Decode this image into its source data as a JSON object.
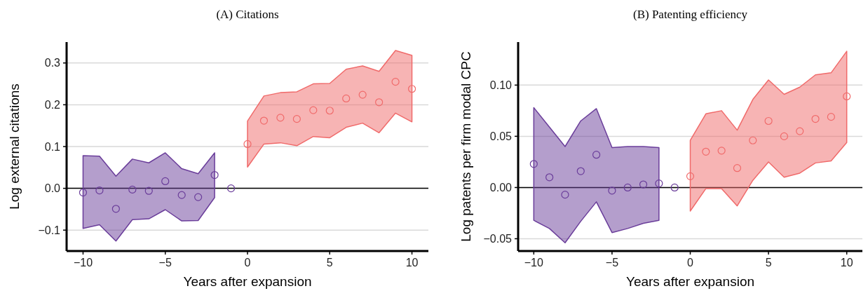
{
  "chart_data": [
    {
      "type": "scatter",
      "title": "(A) Citations",
      "xlabel": "Years after expansion",
      "ylabel": "Log external citations",
      "xlim": [
        -11,
        11
      ],
      "xticks": [
        -10,
        -5,
        0,
        5,
        10
      ],
      "ylim": [
        -0.15,
        0.35
      ],
      "yticks": [
        -0.1,
        {
          "value": 0,
          "label": "0.0"
        },
        0.1,
        0.2,
        0.3
      ],
      "grid": "y",
      "marker": "circle",
      "ref_lines": [
        {
          "axis": "y",
          "value": 0,
          "color": "#000000"
        }
      ],
      "series": [
        {
          "color": "#6a3d9a",
          "x": [
            -10,
            -9,
            -8,
            -7,
            -6,
            -5,
            -4,
            -3,
            -2,
            -1
          ],
          "values": [
            -0.01,
            -0.005,
            -0.049,
            -0.003,
            -0.006,
            0.017,
            -0.016,
            -0.021,
            0.032,
            0.0
          ],
          "upper": [
            0.078,
            0.077,
            0.029,
            0.07,
            0.061,
            0.085,
            0.047,
            0.035,
            0.085,
            null
          ],
          "lower": [
            -0.096,
            -0.087,
            -0.126,
            -0.075,
            -0.073,
            -0.051,
            -0.078,
            -0.077,
            -0.022,
            null
          ]
        },
        {
          "color": "#f06a6a",
          "x": [
            0,
            1,
            2,
            3,
            4,
            5,
            6,
            7,
            8,
            9,
            10
          ],
          "values": [
            0.106,
            0.162,
            0.169,
            0.166,
            0.187,
            0.186,
            0.215,
            0.224,
            0.206,
            0.255,
            0.238
          ],
          "upper": [
            0.161,
            0.221,
            0.229,
            0.231,
            0.25,
            0.251,
            0.285,
            0.293,
            0.28,
            0.33,
            0.318
          ],
          "lower": [
            0.051,
            0.106,
            0.109,
            0.102,
            0.124,
            0.121,
            0.146,
            0.156,
            0.133,
            0.18,
            0.159
          ]
        }
      ]
    },
    {
      "type": "scatter",
      "title": "(B) Patenting efficiency",
      "xlabel": "Years after expansion",
      "ylabel": "Log patents per firm modal CPC",
      "xlim": [
        -11,
        11
      ],
      "xticks": [
        -10,
        -5,
        0,
        5,
        10
      ],
      "ylim": [
        -0.062,
        0.142
      ],
      "yticks": [
        {
          "value": -0.05,
          "label": "−0.05"
        },
        {
          "value": 0,
          "label": "0.00"
        },
        0.05,
        {
          "value": 0.1,
          "label": "0.10"
        }
      ],
      "grid": "y",
      "marker": "circle",
      "ref_lines": [
        {
          "axis": "y",
          "value": 0,
          "color": "#000000"
        }
      ],
      "series": [
        {
          "color": "#6a3d9a",
          "x": [
            -10,
            -9,
            -8,
            -7,
            -6,
            -5,
            -4,
            -3,
            -2,
            -1
          ],
          "values": [
            0.023,
            0.01,
            -0.007,
            0.016,
            0.032,
            -0.003,
            0.0,
            0.003,
            0.004,
            0.0
          ],
          "upper": [
            0.078,
            0.059,
            0.04,
            0.065,
            0.077,
            0.039,
            0.04,
            0.04,
            0.039,
            null
          ],
          "lower": [
            -0.032,
            -0.04,
            -0.054,
            -0.033,
            -0.014,
            -0.044,
            -0.04,
            -0.035,
            -0.032,
            null
          ]
        },
        {
          "color": "#f06a6a",
          "x": [
            0,
            1,
            2,
            3,
            4,
            5,
            6,
            7,
            8,
            9,
            10
          ],
          "values": [
            0.011,
            0.035,
            0.036,
            0.019,
            0.046,
            0.065,
            0.05,
            0.055,
            0.067,
            0.069,
            0.089
          ],
          "upper": [
            0.046,
            0.072,
            0.075,
            0.056,
            0.086,
            0.105,
            0.091,
            0.098,
            0.11,
            0.112,
            0.133
          ],
          "lower": [
            -0.023,
            -0.001,
            -0.001,
            -0.018,
            0.007,
            0.025,
            0.01,
            0.014,
            0.024,
            0.026,
            0.044
          ]
        }
      ]
    }
  ]
}
